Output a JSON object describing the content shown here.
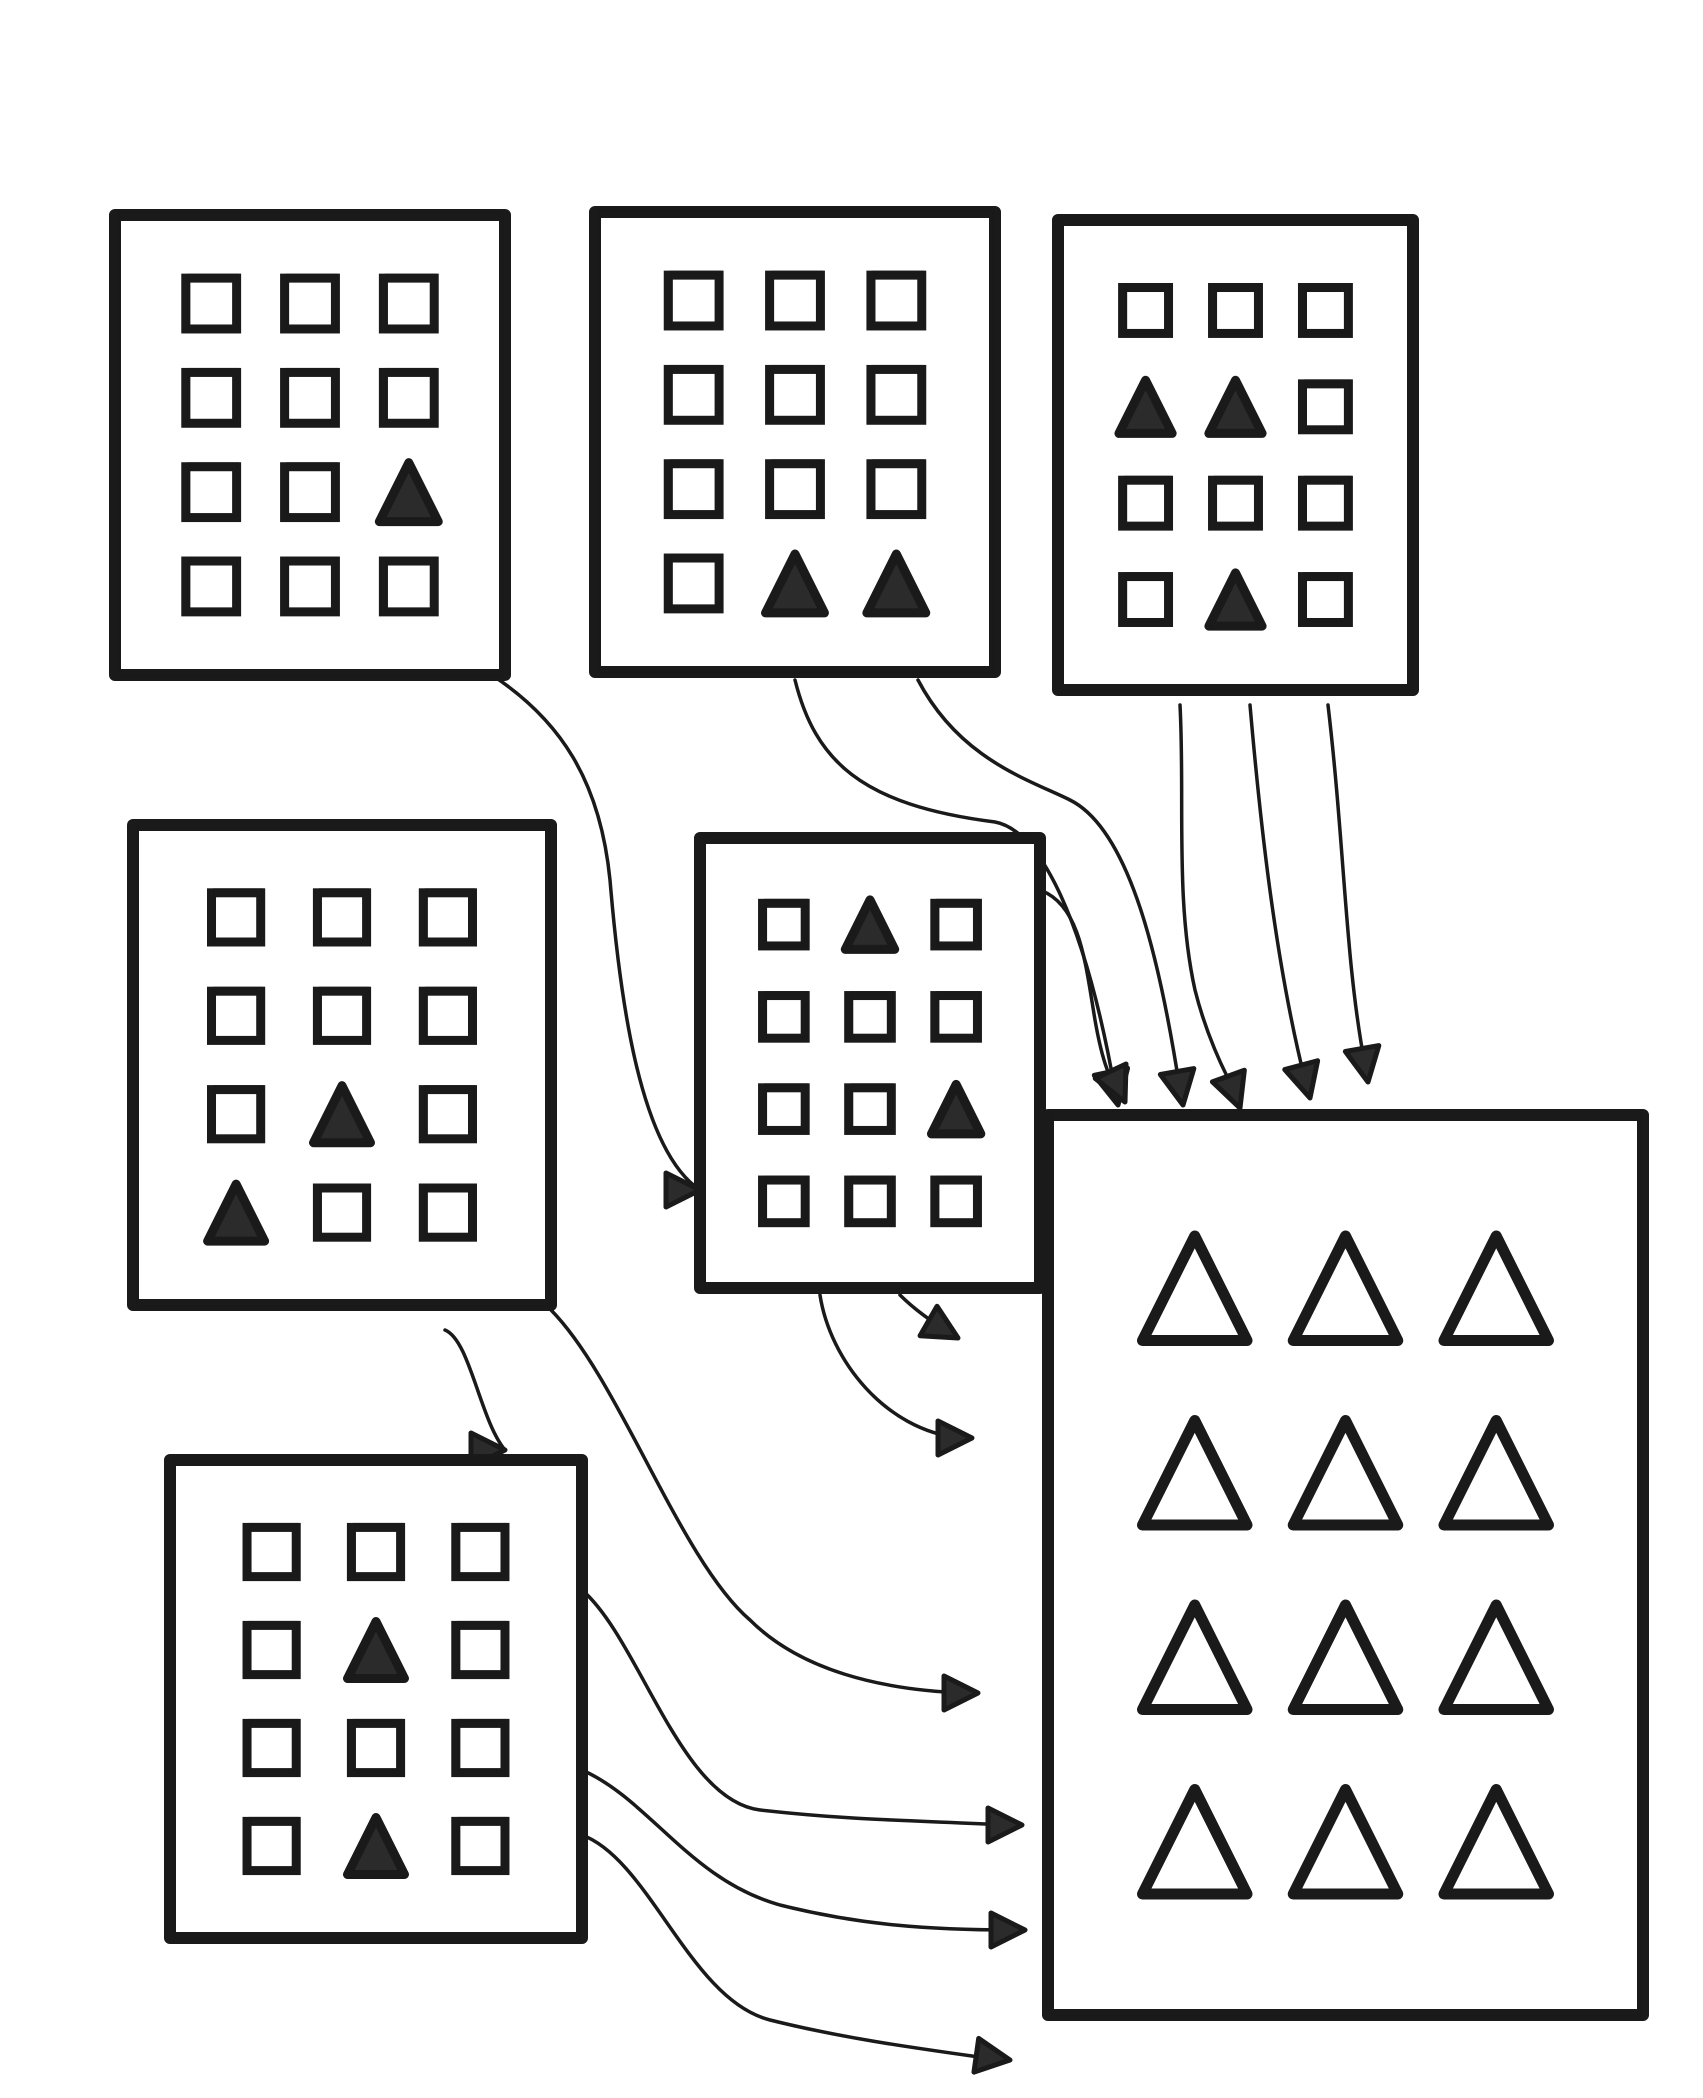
{
  "colors": {
    "ink": "#1a1a1a",
    "paper": "#ffffff",
    "filled_triangle": "#2b2b2b"
  },
  "panels": [
    {
      "id": "source-1",
      "rows": [
        [
          "square",
          "square",
          "square"
        ],
        [
          "square",
          "square",
          "square"
        ],
        [
          "square",
          "square",
          "filled-triangle"
        ],
        [
          "square",
          "square",
          "square"
        ]
      ]
    },
    {
      "id": "source-2",
      "rows": [
        [
          "square",
          "square",
          "square"
        ],
        [
          "square",
          "square",
          "square"
        ],
        [
          "square",
          "square",
          "square"
        ],
        [
          "square",
          "filled-triangle",
          "filled-triangle"
        ]
      ]
    },
    {
      "id": "source-3",
      "rows": [
        [
          "square",
          "square",
          "square"
        ],
        [
          "filled-triangle",
          "filled-triangle",
          "square"
        ],
        [
          "square",
          "square",
          "square"
        ],
        [
          "square",
          "filled-triangle",
          "square"
        ]
      ]
    },
    {
      "id": "source-4",
      "rows": [
        [
          "square",
          "square",
          "square"
        ],
        [
          "square",
          "square",
          "square"
        ],
        [
          "square",
          "filled-triangle",
          "square"
        ],
        [
          "filled-triangle",
          "square",
          "square"
        ]
      ]
    },
    {
      "id": "source-5",
      "rows": [
        [
          "square",
          "filled-triangle",
          "square"
        ],
        [
          "square",
          "square",
          "square"
        ],
        [
          "square",
          "square",
          "filled-triangle"
        ],
        [
          "square",
          "square",
          "square"
        ]
      ]
    },
    {
      "id": "source-6",
      "rows": [
        [
          "square",
          "square",
          "square"
        ],
        [
          "square",
          "filled-triangle",
          "square"
        ],
        [
          "square",
          "square",
          "square"
        ],
        [
          "square",
          "filled-triangle",
          "square"
        ]
      ]
    },
    {
      "id": "target",
      "rows": [
        [
          "outline-triangle",
          "outline-triangle",
          "outline-triangle"
        ],
        [
          "outline-triangle",
          "outline-triangle",
          "outline-triangle"
        ],
        [
          "outline-triangle",
          "outline-triangle",
          "outline-triangle"
        ],
        [
          "outline-triangle",
          "outline-triangle",
          "outline-triangle"
        ]
      ]
    }
  ],
  "arrows": [
    {
      "from": "source-1",
      "to": "target"
    },
    {
      "from": "source-2",
      "to": "target"
    },
    {
      "from": "source-2",
      "to": "target"
    },
    {
      "from": "source-3",
      "to": "target"
    },
    {
      "from": "source-3",
      "to": "target"
    },
    {
      "from": "source-3",
      "to": "target"
    },
    {
      "from": "source-5",
      "to": "target"
    },
    {
      "from": "source-5",
      "to": "target"
    },
    {
      "from": "source-5",
      "to": "target"
    },
    {
      "from": "source-4",
      "to": "target"
    },
    {
      "from": "source-4",
      "to": "target"
    },
    {
      "from": "source-6",
      "to": "target"
    },
    {
      "from": "source-6",
      "to": "target"
    },
    {
      "from": "source-6",
      "to": "target"
    }
  ]
}
